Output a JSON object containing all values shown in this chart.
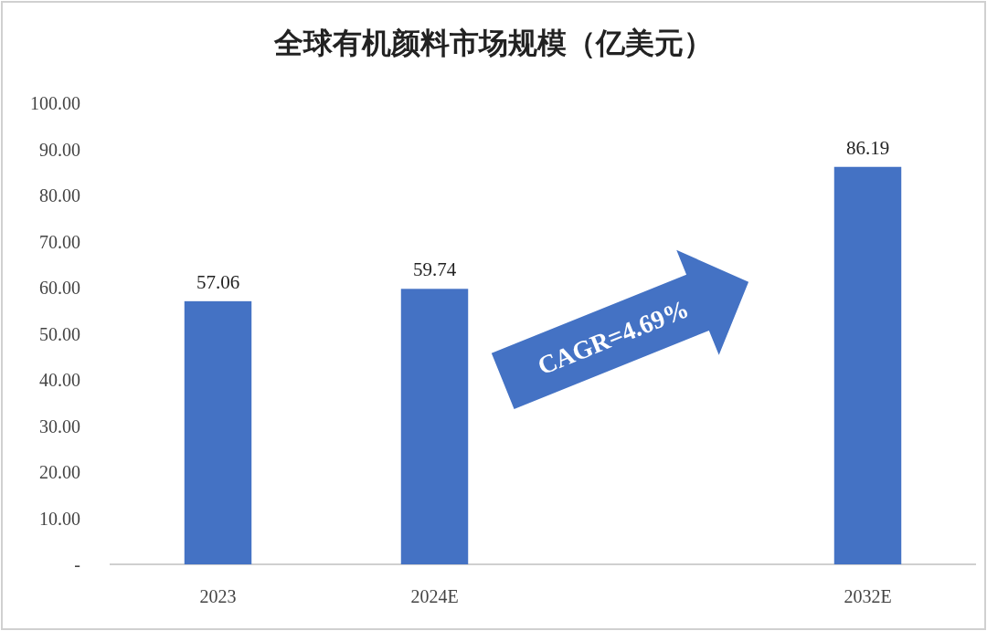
{
  "chart_data": {
    "type": "bar",
    "title": "全球有机颜料市场规模（亿美元）",
    "categories": [
      "2023",
      "2024E",
      null,
      "2032E"
    ],
    "values": [
      57.06,
      59.74,
      null,
      86.19
    ],
    "color": "#4472c4",
    "ylim": [
      0,
      100
    ],
    "yticks": [
      {
        "value": 0,
        "label": "-"
      },
      {
        "value": 10,
        "label": "10.00"
      },
      {
        "value": 20,
        "label": "20.00"
      },
      {
        "value": 30,
        "label": "30.00"
      },
      {
        "value": 40,
        "label": "40.00"
      },
      {
        "value": 50,
        "label": "50.00"
      },
      {
        "value": 60,
        "label": "60.00"
      },
      {
        "value": 70,
        "label": "70.00"
      },
      {
        "value": 80,
        "label": "80.00"
      },
      {
        "value": 90,
        "label": "90.00"
      },
      {
        "value": 100,
        "label": "100.00"
      }
    ],
    "data_labels": true,
    "annotations": [
      "CAGR=4.69%"
    ]
  }
}
